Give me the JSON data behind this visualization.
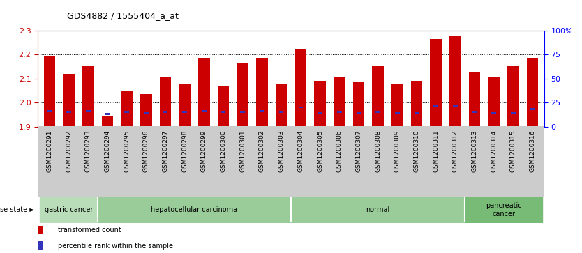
{
  "title": "GDS4882 / 1555404_a_at",
  "samples": [
    "GSM1200291",
    "GSM1200292",
    "GSM1200293",
    "GSM1200294",
    "GSM1200295",
    "GSM1200296",
    "GSM1200297",
    "GSM1200298",
    "GSM1200299",
    "GSM1200300",
    "GSM1200301",
    "GSM1200302",
    "GSM1200303",
    "GSM1200304",
    "GSM1200305",
    "GSM1200306",
    "GSM1200307",
    "GSM1200308",
    "GSM1200309",
    "GSM1200310",
    "GSM1200311",
    "GSM1200312",
    "GSM1200313",
    "GSM1200314",
    "GSM1200315",
    "GSM1200316"
  ],
  "transformed_count": [
    2.195,
    2.12,
    2.155,
    1.945,
    2.045,
    2.035,
    2.105,
    2.075,
    2.185,
    2.07,
    2.165,
    2.185,
    2.075,
    2.22,
    2.09,
    2.105,
    2.085,
    2.155,
    2.075,
    2.09,
    2.265,
    2.275,
    2.125,
    2.105,
    2.155,
    2.185
  ],
  "percentile_rank": [
    16,
    15,
    16,
    13,
    15,
    14,
    15,
    15,
    16,
    15,
    15,
    16,
    15,
    20,
    14,
    15,
    14,
    15,
    14,
    14,
    21,
    21,
    15,
    14,
    14,
    18
  ],
  "ylim": [
    1.9,
    2.3
  ],
  "yticks": [
    1.9,
    2.0,
    2.1,
    2.2,
    2.3
  ],
  "right_yticks_pct": [
    0,
    25,
    50,
    75,
    100
  ],
  "right_ylabels": [
    "0",
    "25",
    "50",
    "75",
    "100%"
  ],
  "bar_color": "#cc0000",
  "blue_color": "#3333bb",
  "bg_color": "#ffffff",
  "plot_bg": "#ffffff",
  "tick_bg": "#cccccc",
  "categories": [
    {
      "label": "gastric cancer",
      "start": 0,
      "end": 3,
      "color": "#aaddaa"
    },
    {
      "label": "hepatocellular carcinoma",
      "start": 3,
      "end": 13,
      "color": "#88cc88"
    },
    {
      "label": "normal",
      "start": 13,
      "end": 22,
      "color": "#88cc88"
    },
    {
      "label": "pancreatic\ncancer",
      "start": 22,
      "end": 26,
      "color": "#66bb66"
    }
  ]
}
